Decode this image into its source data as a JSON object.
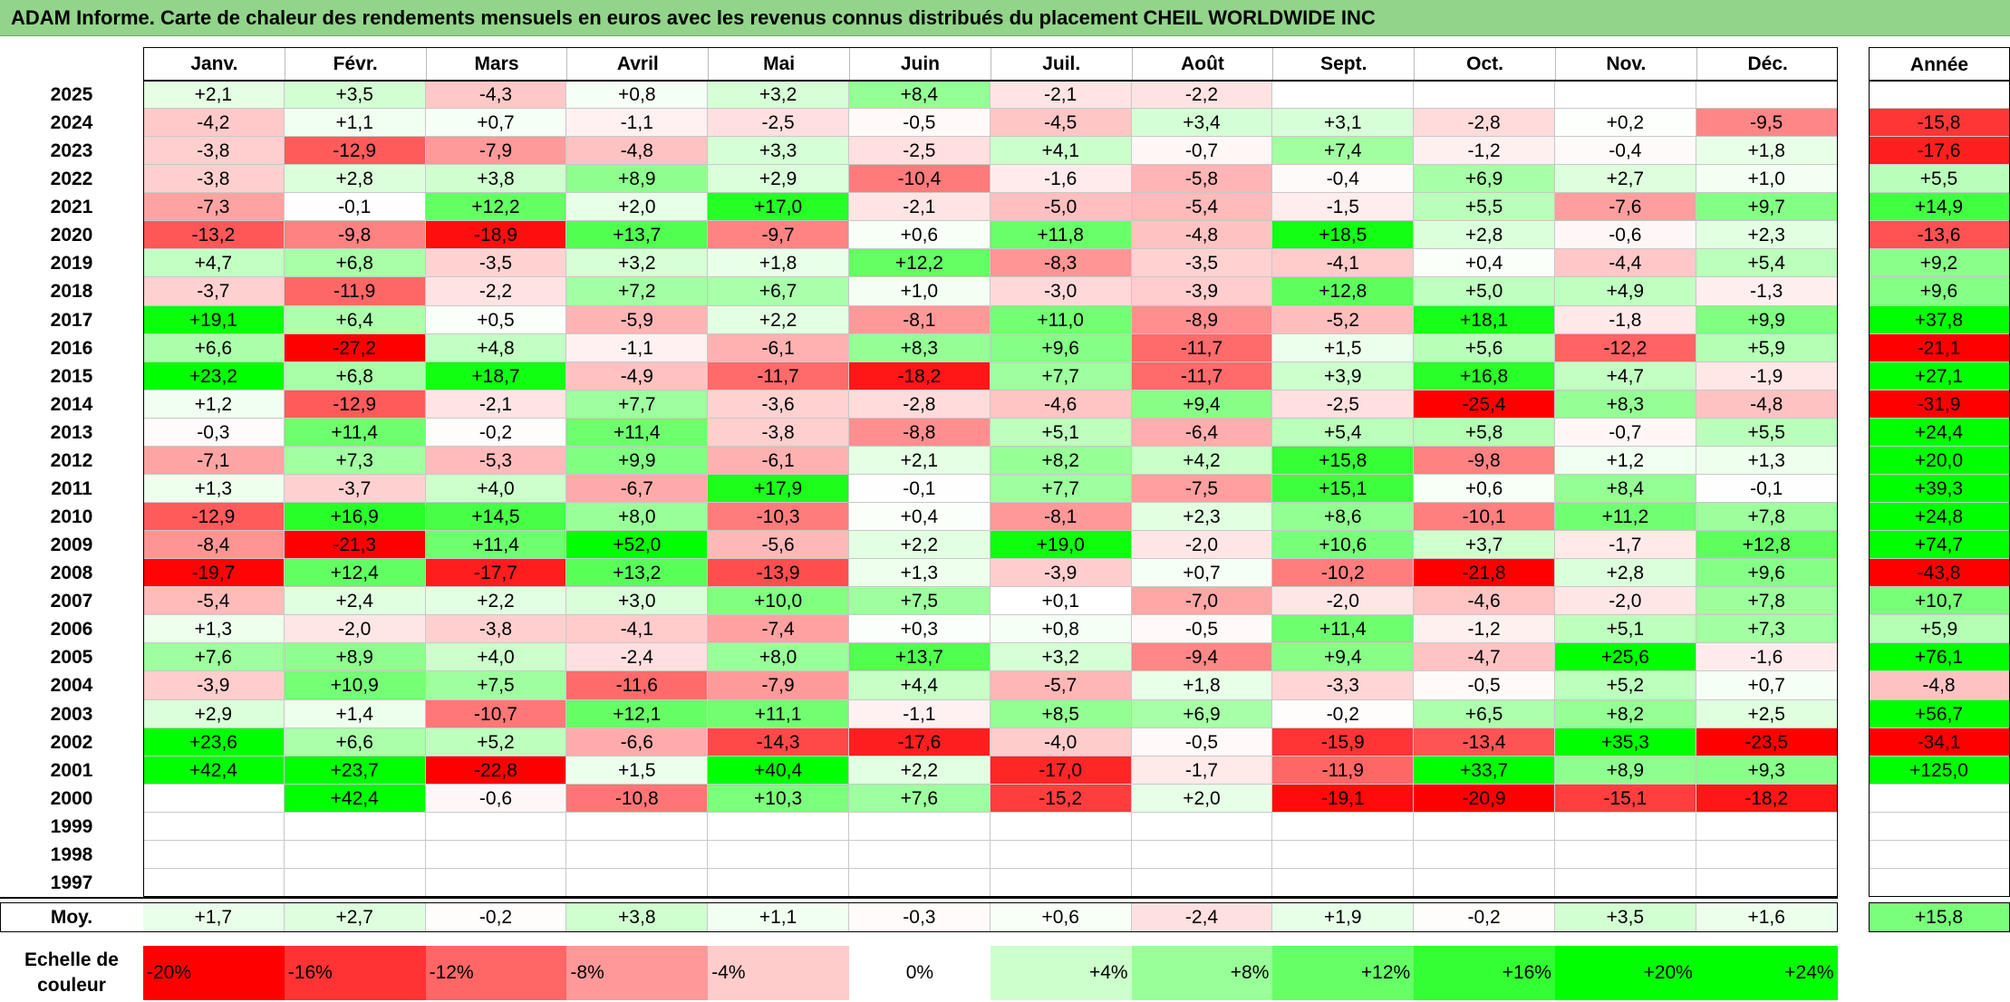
{
  "title": "ADAM Informe. Carte de chaleur des rendements mensuels en euros avec les revenus connus distribués du placement CHEIL WORLDWIDE INC",
  "colors": {
    "positive": "#00ff00",
    "negative": "#ff0000",
    "neutral": "#ffffff",
    "title_bg": "#92d48a"
  },
  "chart_data": {
    "type": "heatmap",
    "title": "ADAM Informe. Carte de chaleur des rendements mensuels en euros avec les revenus connus distribués du placement CHEIL WORLDWIDE INC",
    "columns": [
      "Janv.",
      "Févr.",
      "Mars",
      "Avril",
      "Mai",
      "Juin",
      "Juil.",
      "Août",
      "Sept.",
      "Oct.",
      "Nov.",
      "Déc."
    ],
    "year_column_label": "Année",
    "rows": [
      {
        "year": "2025",
        "months": [
          "+2,1",
          "+3,5",
          "-4,3",
          "+0,8",
          "+3,2",
          "+8,4",
          "-2,1",
          "-2,2",
          "",
          "",
          "",
          ""
        ],
        "annual": ""
      },
      {
        "year": "2024",
        "months": [
          "-4,2",
          "+1,1",
          "+0,7",
          "-1,1",
          "-2,5",
          "-0,5",
          "-4,5",
          "+3,4",
          "+3,1",
          "-2,8",
          "+0,2",
          "-9,5"
        ],
        "annual": "-15,8"
      },
      {
        "year": "2023",
        "months": [
          "-3,8",
          "-12,9",
          "-7,9",
          "-4,8",
          "+3,3",
          "-2,5",
          "+4,1",
          "-0,7",
          "+7,4",
          "-1,2",
          "-0,4",
          "+1,8"
        ],
        "annual": "-17,6"
      },
      {
        "year": "2022",
        "months": [
          "-3,8",
          "+2,8",
          "+3,8",
          "+8,9",
          "+2,9",
          "-10,4",
          "-1,6",
          "-5,8",
          "-0,4",
          "+6,9",
          "+2,7",
          "+1,0"
        ],
        "annual": "+5,5"
      },
      {
        "year": "2021",
        "months": [
          "-7,3",
          "-0,1",
          "+12,2",
          "+2,0",
          "+17,0",
          "-2,1",
          "-5,0",
          "-5,4",
          "-1,5",
          "+5,5",
          "-7,6",
          "+9,7"
        ],
        "annual": "+14,9"
      },
      {
        "year": "2020",
        "months": [
          "-13,2",
          "-9,8",
          "-18,9",
          "+13,7",
          "-9,7",
          "+0,6",
          "+11,8",
          "-4,8",
          "+18,5",
          "+2,8",
          "-0,6",
          "+2,3"
        ],
        "annual": "-13,6"
      },
      {
        "year": "2019",
        "months": [
          "+4,7",
          "+6,8",
          "-3,5",
          "+3,2",
          "+1,8",
          "+12,2",
          "-8,3",
          "-3,5",
          "-4,1",
          "+0,4",
          "-4,4",
          "+5,4"
        ],
        "annual": "+9,2"
      },
      {
        "year": "2018",
        "months": [
          "-3,7",
          "-11,9",
          "-2,2",
          "+7,2",
          "+6,7",
          "+1,0",
          "-3,0",
          "-3,9",
          "+12,8",
          "+5,0",
          "+4,9",
          "-1,3"
        ],
        "annual": "+9,6"
      },
      {
        "year": "2017",
        "months": [
          "+19,1",
          "+6,4",
          "+0,5",
          "-5,9",
          "+2,2",
          "-8,1",
          "+11,0",
          "-8,9",
          "-5,2",
          "+18,1",
          "-1,8",
          "+9,9"
        ],
        "annual": "+37,8"
      },
      {
        "year": "2016",
        "months": [
          "+6,6",
          "-27,2",
          "+4,8",
          "-1,1",
          "-6,1",
          "+8,3",
          "+9,6",
          "-11,7",
          "+1,5",
          "+5,6",
          "-12,2",
          "+5,9"
        ],
        "annual": "-21,1"
      },
      {
        "year": "2015",
        "months": [
          "+23,2",
          "+6,8",
          "+18,7",
          "-4,9",
          "-11,7",
          "-18,2",
          "+7,7",
          "-11,7",
          "+3,9",
          "+16,8",
          "+4,7",
          "-1,9"
        ],
        "annual": "+27,1"
      },
      {
        "year": "2014",
        "months": [
          "+1,2",
          "-12,9",
          "-2,1",
          "+7,7",
          "-3,6",
          "-2,8",
          "-4,6",
          "+9,4",
          "-2,5",
          "-25,4",
          "+8,3",
          "-4,8"
        ],
        "annual": "-31,9"
      },
      {
        "year": "2013",
        "months": [
          "-0,3",
          "+11,4",
          "-0,2",
          "+11,4",
          "-3,8",
          "-8,8",
          "+5,1",
          "-6,4",
          "+5,4",
          "+5,8",
          "-0,7",
          "+5,5"
        ],
        "annual": "+24,4"
      },
      {
        "year": "2012",
        "months": [
          "-7,1",
          "+7,3",
          "-5,3",
          "+9,9",
          "-6,1",
          "+2,1",
          "+8,2",
          "+4,2",
          "+15,8",
          "-9,8",
          "+1,2",
          "+1,3"
        ],
        "annual": "+20,0"
      },
      {
        "year": "2011",
        "months": [
          "+1,3",
          "-3,7",
          "+4,0",
          "-6,7",
          "+17,9",
          "-0,1",
          "+7,7",
          "-7,5",
          "+15,1",
          "+0,6",
          "+8,4",
          "-0,1"
        ],
        "annual": "+39,3"
      },
      {
        "year": "2010",
        "months": [
          "-12,9",
          "+16,9",
          "+14,5",
          "+8,0",
          "-10,3",
          "+0,4",
          "-8,1",
          "+2,3",
          "+8,6",
          "-10,1",
          "+11,2",
          "+7,8"
        ],
        "annual": "+24,8"
      },
      {
        "year": "2009",
        "months": [
          "-8,4",
          "-21,3",
          "+11,4",
          "+52,0",
          "-5,6",
          "+2,2",
          "+19,0",
          "-2,0",
          "+10,6",
          "+3,7",
          "-1,7",
          "+12,8"
        ],
        "annual": "+74,7"
      },
      {
        "year": "2008",
        "months": [
          "-19,7",
          "+12,4",
          "-17,7",
          "+13,2",
          "-13,9",
          "+1,3",
          "-3,9",
          "+0,7",
          "-10,2",
          "-21,8",
          "+2,8",
          "+9,6"
        ],
        "annual": "-43,8"
      },
      {
        "year": "2007",
        "months": [
          "-5,4",
          "+2,4",
          "+2,2",
          "+3,0",
          "+10,0",
          "+7,5",
          "+0,1",
          "-7,0",
          "-2,0",
          "-4,6",
          "-2,0",
          "+7,8"
        ],
        "annual": "+10,7"
      },
      {
        "year": "2006",
        "months": [
          "+1,3",
          "-2,0",
          "-3,8",
          "-4,1",
          "-7,4",
          "+0,3",
          "+0,8",
          "-0,5",
          "+11,4",
          "-1,2",
          "+5,1",
          "+7,3"
        ],
        "annual": "+5,9"
      },
      {
        "year": "2005",
        "months": [
          "+7,6",
          "+8,9",
          "+4,0",
          "-2,4",
          "+8,0",
          "+13,7",
          "+3,2",
          "-9,4",
          "+9,4",
          "-4,7",
          "+25,6",
          "-1,6"
        ],
        "annual": "+76,1"
      },
      {
        "year": "2004",
        "months": [
          "-3,9",
          "+10,9",
          "+7,5",
          "-11,6",
          "-7,9",
          "+4,4",
          "-5,7",
          "+1,8",
          "-3,3",
          "-0,5",
          "+5,2",
          "+0,7"
        ],
        "annual": "-4,8"
      },
      {
        "year": "2003",
        "months": [
          "+2,9",
          "+1,4",
          "-10,7",
          "+12,1",
          "+11,1",
          "-1,1",
          "+8,5",
          "+6,9",
          "-0,2",
          "+6,5",
          "+8,2",
          "+2,5"
        ],
        "annual": "+56,7"
      },
      {
        "year": "2002",
        "months": [
          "+23,6",
          "+6,6",
          "+5,2",
          "-6,6",
          "-14,3",
          "-17,6",
          "-4,0",
          "-0,5",
          "-15,9",
          "-13,4",
          "+35,3",
          "-23,5"
        ],
        "annual": "-34,1"
      },
      {
        "year": "2001",
        "months": [
          "+42,4",
          "+23,7",
          "-22,8",
          "+1,5",
          "+40,4",
          "+2,2",
          "-17,0",
          "-1,7",
          "-11,9",
          "+33,7",
          "+8,9",
          "+9,3"
        ],
        "annual": "+125,0"
      },
      {
        "year": "2000",
        "months": [
          "",
          "+42,4",
          "-0,6",
          "-10,8",
          "+10,3",
          "+7,6",
          "-15,2",
          "+2,0",
          "-19,1",
          "-20,9",
          "-15,1",
          "-18,2"
        ],
        "annual": ""
      },
      {
        "year": "1999",
        "months": [
          "",
          "",
          "",
          "",
          "",
          "",
          "",
          "",
          "",
          "",
          "",
          ""
        ],
        "annual": ""
      },
      {
        "year": "1998",
        "months": [
          "",
          "",
          "",
          "",
          "",
          "",
          "",
          "",
          "",
          "",
          "",
          ""
        ],
        "annual": ""
      },
      {
        "year": "1997",
        "months": [
          "",
          "",
          "",
          "",
          "",
          "",
          "",
          "",
          "",
          "",
          "",
          ""
        ],
        "annual": ""
      }
    ],
    "average": {
      "label": "Moy.",
      "months": [
        "+1,7",
        "+2,7",
        "-0,2",
        "+3,8",
        "+1,1",
        "-0,3",
        "+0,6",
        "-2,4",
        "+1,9",
        "-0,2",
        "+3,5",
        "+1,6"
      ],
      "annual": "+15,8"
    },
    "scale": {
      "label_line1": "Echelle de",
      "label_line2": "couleur",
      "stops": [
        {
          "label": "-20%",
          "value": -20
        },
        {
          "label": "-16%",
          "value": -16
        },
        {
          "label": "-12%",
          "value": -12
        },
        {
          "label": "-8%",
          "value": -8
        },
        {
          "label": "-4%",
          "value": -4
        },
        {
          "label": "0%",
          "value": 0
        },
        {
          "label": "+4%",
          "value": 4
        },
        {
          "label": "+8%",
          "value": 8
        },
        {
          "label": "+12%",
          "value": 12
        },
        {
          "label": "+16%",
          "value": 16
        },
        {
          "label": "+20%",
          "value": 20
        },
        {
          "label": "+24%",
          "value": 24
        }
      ]
    }
  }
}
